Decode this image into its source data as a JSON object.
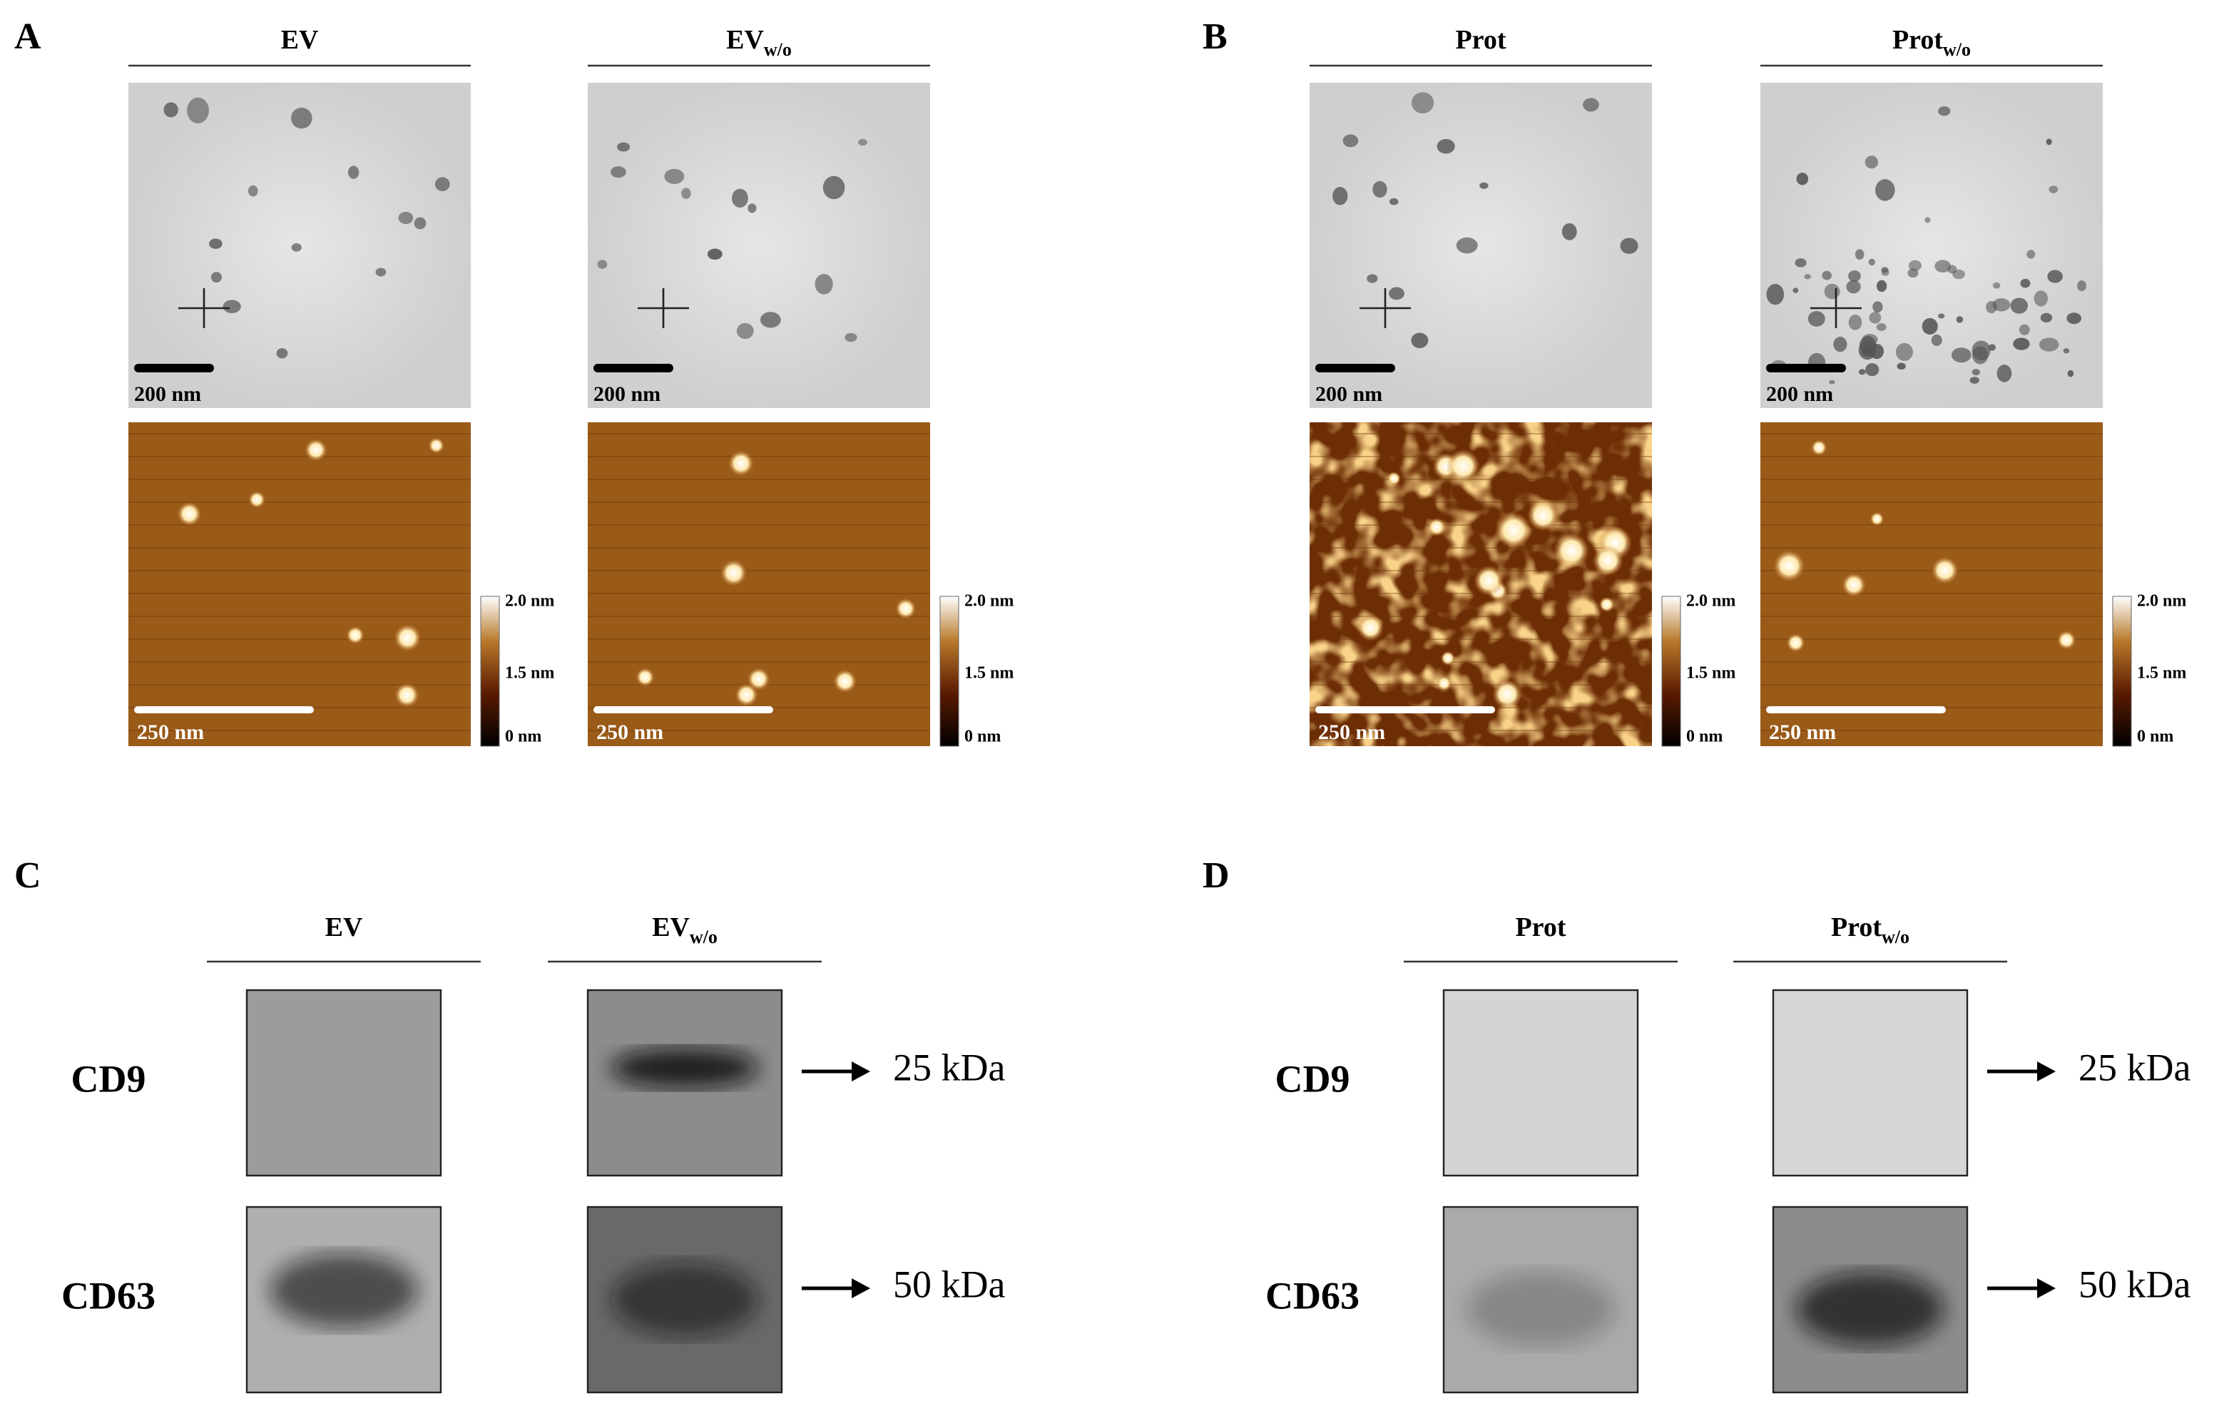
{
  "panels": [
    {
      "label": "A",
      "columns": [
        {
          "title": "EV"
        },
        {
          "title": "EV",
          "subscript": "w/o"
        }
      ],
      "tem_scale": "200 nm",
      "afm_scale": "250 nm",
      "colorbar": [
        "2.0 nm",
        "1.5 nm",
        "0 nm"
      ]
    },
    {
      "label": "B",
      "columns": [
        {
          "title": "Prot"
        },
        {
          "title": "Prot",
          "subscript": "w/o"
        }
      ],
      "tem_scale": "200 nm",
      "afm_scale": "250 nm",
      "colorbar": [
        "2.0 nm",
        "1.5 nm",
        "0 nm"
      ]
    },
    {
      "label": "C",
      "columns": [
        {
          "title": "EV"
        },
        {
          "title": "EV",
          "subscript": "w/o"
        }
      ],
      "rows": [
        {
          "name": "CD9",
          "marker": "25 kDa"
        },
        {
          "name": "CD63",
          "marker": "50 kDa"
        }
      ]
    },
    {
      "label": "D",
      "columns": [
        {
          "title": "Prot"
        },
        {
          "title": "Prot",
          "subscript": "w/o"
        }
      ],
      "rows": [
        {
          "name": "CD9",
          "marker": "25 kDa"
        },
        {
          "name": "CD63",
          "marker": "50 kDa"
        }
      ]
    }
  ]
}
